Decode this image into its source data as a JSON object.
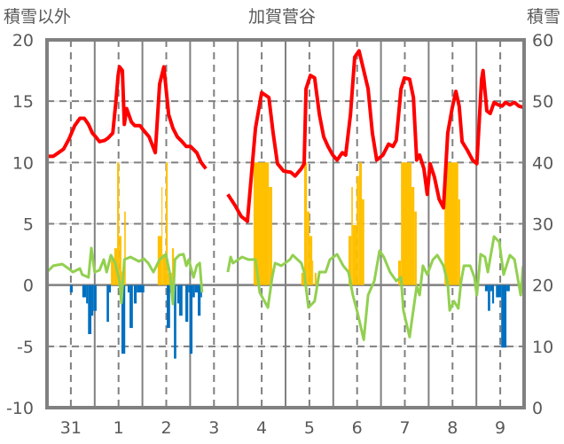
{
  "chart_data": {
    "type": "bar+line",
    "title": "加賀菅谷",
    "ylabel_left": "積雪以外",
    "ylabel_right": "積雪",
    "ylim_left": [
      -10,
      20
    ],
    "ylim_right": [
      0,
      60
    ],
    "yticks_left": [
      "20",
      "15",
      "10",
      "5",
      "0",
      "-5",
      "-10"
    ],
    "yticks_right": [
      "60",
      "50",
      "40",
      "30",
      "20",
      "10",
      "0"
    ],
    "x_range_days": [
      0,
      10
    ],
    "day_labels": [
      "31",
      "1",
      "2",
      "3",
      "4",
      "5",
      "6",
      "7",
      "8",
      "9"
    ],
    "grid": true,
    "colors": {
      "red": "#FF0000",
      "green": "#92D050",
      "yellow": "#FFC000",
      "blue": "#0070C0",
      "purple": "#7030A0",
      "frame": "#808080"
    },
    "red_series": [
      [
        0,
        10.5
      ],
      [
        0.13,
        10.5
      ],
      [
        0.24,
        10.8
      ],
      [
        0.35,
        11.1
      ],
      [
        0.46,
        11.9
      ],
      [
        0.58,
        13.0
      ],
      [
        0.69,
        13.6
      ],
      [
        0.78,
        13.6
      ],
      [
        0.87,
        13.1
      ],
      [
        0.95,
        12.4
      ],
      [
        1.02,
        12.1
      ],
      [
        1.1,
        11.7
      ],
      [
        1.21,
        11.8
      ],
      [
        1.28,
        12.0
      ],
      [
        1.38,
        12.4
      ],
      [
        1.45,
        15.2
      ],
      [
        1.49,
        17.1
      ],
      [
        1.52,
        17.8
      ],
      [
        1.58,
        17.5
      ],
      [
        1.62,
        13.1
      ],
      [
        1.67,
        14.4
      ],
      [
        1.77,
        13.3
      ],
      [
        1.84,
        13.0
      ],
      [
        1.95,
        13.0
      ],
      [
        2.03,
        12.6
      ],
      [
        2.14,
        12.1
      ],
      [
        2.27,
        10.8
      ],
      [
        2.36,
        16.4
      ],
      [
        2.45,
        17.8
      ],
      [
        2.55,
        13.9
      ],
      [
        2.64,
        12.8
      ],
      [
        2.73,
        12.1
      ],
      [
        2.83,
        11.7
      ],
      [
        2.92,
        11.3
      ],
      [
        3.01,
        11.3
      ],
      [
        3.14,
        10.8
      ],
      [
        3.23,
        10.0
      ],
      [
        3.33,
        9.5
      ],
      null,
      [
        3.79,
        7.4
      ],
      [
        3.94,
        6.5
      ],
      [
        4.07,
        5.6
      ],
      [
        4.2,
        5.2
      ],
      [
        4.37,
        12.8
      ],
      [
        4.5,
        15.7
      ],
      [
        4.65,
        15.3
      ],
      [
        4.74,
        12.4
      ],
      [
        4.83,
        9.9
      ],
      [
        4.96,
        9.3
      ],
      [
        5.11,
        9.2
      ],
      [
        5.2,
        8.9
      ],
      [
        5.33,
        9.5
      ],
      [
        5.39,
        9.9
      ],
      [
        5.43,
        16.0
      ],
      [
        5.52,
        17.1
      ],
      [
        5.61,
        16.9
      ],
      [
        5.71,
        13.9
      ],
      [
        5.8,
        12.1
      ],
      [
        5.89,
        11.3
      ],
      [
        5.99,
        10.6
      ],
      [
        6.08,
        10.2
      ],
      [
        6.19,
        10.8
      ],
      [
        6.26,
        10.6
      ],
      [
        6.36,
        13.9
      ],
      [
        6.45,
        18.6
      ],
      [
        6.54,
        19.1
      ],
      [
        6.64,
        17.5
      ],
      [
        6.73,
        16.0
      ],
      [
        6.82,
        12.4
      ],
      [
        6.91,
        10.2
      ],
      [
        7.04,
        10.6
      ],
      [
        7.16,
        11.5
      ],
      [
        7.25,
        11.3
      ],
      [
        7.32,
        11.8
      ],
      [
        7.42,
        16.0
      ],
      [
        7.49,
        16.9
      ],
      [
        7.6,
        16.8
      ],
      [
        7.68,
        15.3
      ],
      [
        7.75,
        10.2
      ],
      [
        7.81,
        10.6
      ],
      [
        7.9,
        9.5
      ],
      [
        7.97,
        7.4
      ],
      [
        8.03,
        9.9
      ],
      [
        8.12,
        8.8
      ],
      [
        8.22,
        7.0
      ],
      [
        8.31,
        6.3
      ],
      [
        8.4,
        12.4
      ],
      [
        8.49,
        14.4
      ],
      [
        8.57,
        15.8
      ],
      [
        8.64,
        14.6
      ],
      [
        8.7,
        11.7
      ],
      [
        8.81,
        11.0
      ],
      [
        8.92,
        10.2
      ],
      [
        9.01,
        9.9
      ],
      [
        9.11,
        16.8
      ],
      [
        9.14,
        17.5
      ],
      [
        9.22,
        14.2
      ],
      [
        9.29,
        14.0
      ],
      [
        9.37,
        14.9
      ],
      [
        9.46,
        14.7
      ],
      [
        9.54,
        14.6
      ],
      [
        9.61,
        14.9
      ],
      [
        9.7,
        14.7
      ],
      [
        9.8,
        14.9
      ],
      [
        9.89,
        14.6
      ],
      [
        9.98,
        14.5
      ]
    ],
    "green_series": [
      [
        0,
        1.06
      ],
      [
        0.13,
        1.57
      ],
      [
        0.32,
        1.71
      ],
      [
        0.45,
        1.35
      ],
      [
        0.54,
        1.06
      ],
      [
        0.69,
        1.35
      ],
      [
        0.74,
        0.85
      ],
      [
        0.87,
        0.63
      ],
      [
        0.93,
        3.02
      ],
      [
        1.0,
        1.06
      ],
      [
        1.1,
        1.21
      ],
      [
        1.19,
        2.08
      ],
      [
        1.25,
        1.06
      ],
      [
        1.34,
        2.44
      ],
      [
        1.43,
        1.79
      ],
      [
        1.52,
        0.34
      ],
      [
        1.56,
        -1.46
      ],
      [
        1.62,
        2.08
      ],
      [
        1.75,
        2.29
      ],
      [
        1.93,
        1.93
      ],
      [
        2.03,
        2.15
      ],
      [
        2.12,
        1.79
      ],
      [
        2.23,
        1.06
      ],
      [
        2.36,
        2.08
      ],
      [
        2.49,
        2.51
      ],
      [
        2.58,
        0.85
      ],
      [
        2.64,
        -1.54
      ],
      [
        2.68,
        2.08
      ],
      [
        2.77,
        2.44
      ],
      [
        2.86,
        2.51
      ],
      [
        2.92,
        1.57
      ],
      [
        2.97,
        2.08
      ],
      [
        3.07,
        0.63
      ],
      [
        3.14,
        1.57
      ],
      [
        3.2,
        1.79
      ],
      [
        3.25,
        -0.6
      ],
      null,
      [
        3.79,
        1.06
      ],
      [
        3.85,
        2.29
      ],
      [
        3.9,
        1.79
      ],
      [
        4.09,
        2.29
      ],
      [
        4.22,
        2.08
      ],
      [
        4.37,
        2.08
      ],
      [
        4.46,
        -0.6
      ],
      [
        4.63,
        -1.83
      ],
      [
        4.72,
        0.63
      ],
      [
        4.78,
        1.79
      ],
      [
        4.91,
        1.57
      ],
      [
        5.09,
        2.08
      ],
      [
        5.15,
        2.44
      ],
      [
        5.33,
        1.79
      ],
      [
        5.39,
        1.06
      ],
      [
        5.48,
        -1.83
      ],
      [
        5.61,
        -1.32
      ],
      [
        5.71,
        1.06
      ],
      [
        5.84,
        1.06
      ],
      [
        5.93,
        2.08
      ],
      [
        6.08,
        2.51
      ],
      [
        6.21,
        1.57
      ],
      [
        6.32,
        1.06
      ],
      [
        6.41,
        -0.82
      ],
      [
        6.51,
        -2.26
      ],
      [
        6.64,
        -4.46
      ],
      [
        6.73,
        -0.82
      ],
      [
        6.86,
        0.34
      ],
      [
        6.97,
        2.8
      ],
      [
        7.06,
        2.29
      ],
      [
        7.19,
        1.06
      ],
      [
        7.32,
        0.34
      ],
      [
        7.42,
        0.63
      ],
      [
        7.47,
        -2.07
      ],
      [
        7.6,
        -4.24
      ],
      [
        7.66,
        -2.55
      ],
      [
        7.75,
        -0.1
      ],
      [
        7.81,
        -0.82
      ],
      [
        7.88,
        1.57
      ],
      [
        7.97,
        0.85
      ],
      [
        8.09,
        2.08
      ],
      [
        8.18,
        2.44
      ],
      [
        8.31,
        1.57
      ],
      [
        8.4,
        0.12
      ],
      [
        8.44,
        -2.07
      ],
      [
        8.53,
        -1.32
      ],
      [
        8.62,
        -1.9
      ],
      [
        8.68,
        0.34
      ],
      [
        8.74,
        1.57
      ],
      [
        8.87,
        1.57
      ],
      [
        8.96,
        0.63
      ],
      [
        9.01,
        -0.82
      ],
      [
        9.09,
        2.51
      ],
      [
        9.18,
        2.29
      ],
      [
        9.24,
        1.06
      ],
      [
        9.37,
        3.96
      ],
      [
        9.48,
        3.52
      ],
      [
        9.57,
        0.85
      ],
      [
        9.7,
        2.44
      ],
      [
        9.8,
        2.08
      ],
      [
        9.93,
        -0.82
      ],
      [
        9.98,
        1.57
      ]
    ],
    "yellow_bars": [
      [
        1.34,
        1.41,
        2.1
      ],
      [
        1.41,
        1.47,
        3.0
      ],
      [
        1.47,
        1.51,
        10
      ],
      [
        1.51,
        1.56,
        4.0
      ],
      [
        1.56,
        1.62,
        1.1
      ],
      [
        1.62,
        1.65,
        6.0
      ],
      [
        2.32,
        2.4,
        4.0
      ],
      [
        2.4,
        2.42,
        8.0
      ],
      [
        2.42,
        2.49,
        2.5
      ],
      [
        2.49,
        2.53,
        10
      ],
      [
        2.53,
        2.62,
        1.0
      ],
      [
        2.62,
        2.66,
        3.0
      ],
      [
        4.33,
        4.65,
        10
      ],
      [
        4.65,
        4.72,
        8.0
      ],
      [
        5.33,
        5.39,
        1.0
      ],
      [
        5.39,
        5.45,
        10
      ],
      [
        5.45,
        5.5,
        6
      ],
      [
        5.5,
        5.56,
        4
      ],
      [
        5.56,
        5.58,
        2
      ],
      [
        5.61,
        5.65,
        1
      ],
      [
        6.32,
        6.38,
        4
      ],
      [
        6.38,
        6.41,
        8
      ],
      [
        6.41,
        6.49,
        4.9
      ],
      [
        6.49,
        6.54,
        8.9
      ],
      [
        6.54,
        6.6,
        10
      ],
      [
        6.6,
        6.65,
        7
      ],
      [
        7.36,
        7.42,
        2
      ],
      [
        7.42,
        7.64,
        10
      ],
      [
        7.64,
        7.7,
        8
      ],
      [
        7.7,
        7.75,
        6
      ],
      [
        8.33,
        8.62,
        10
      ],
      [
        8.62,
        8.66,
        7
      ]
    ],
    "blue_bars": [
      [
        0.48,
        0.54,
        -0.6
      ],
      [
        0.74,
        0.82,
        -1.0
      ],
      [
        0.82,
        0.86,
        -1.5
      ],
      [
        0.86,
        0.93,
        -4.0
      ],
      [
        0.93,
        0.97,
        -2.5
      ],
      [
        0.97,
        1.04,
        -2.1
      ],
      [
        1.25,
        1.3,
        -3.0
      ],
      [
        1.3,
        1.34,
        -0.6
      ],
      [
        1.56,
        1.64,
        -5.6
      ],
      [
        1.69,
        1.73,
        -0.6
      ],
      [
        1.73,
        1.8,
        -3.5
      ],
      [
        1.82,
        1.88,
        -1.5
      ],
      [
        1.88,
        2.04,
        -0.6
      ],
      [
        2.51,
        2.58,
        -3.5
      ],
      [
        2.58,
        2.66,
        -0.6
      ],
      [
        2.66,
        2.71,
        -6.0
      ],
      [
        2.73,
        2.77,
        -1.5
      ],
      [
        2.77,
        2.84,
        -2.5
      ],
      [
        2.9,
        2.96,
        -3.0
      ],
      [
        2.96,
        2.99,
        -0.6
      ],
      [
        2.99,
        3.05,
        -5.6
      ],
      [
        3.05,
        3.1,
        -1.0
      ],
      [
        3.1,
        3.16,
        -0.6
      ],
      [
        3.16,
        3.22,
        -2.5
      ],
      [
        3.22,
        3.25,
        -1.0
      ],
      [
        9.18,
        9.24,
        -0.5
      ],
      [
        9.24,
        9.29,
        -2.1
      ],
      [
        9.29,
        9.33,
        -0.5
      ],
      [
        9.33,
        9.37,
        -1.5
      ],
      [
        9.41,
        9.52,
        -1.0
      ],
      [
        9.52,
        9.63,
        -5.1
      ],
      [
        9.63,
        9.7,
        -0.5
      ]
    ],
    "purple_snow_depth": [
      [
        6.45,
        0
      ],
      [
        10,
        0
      ]
    ]
  }
}
